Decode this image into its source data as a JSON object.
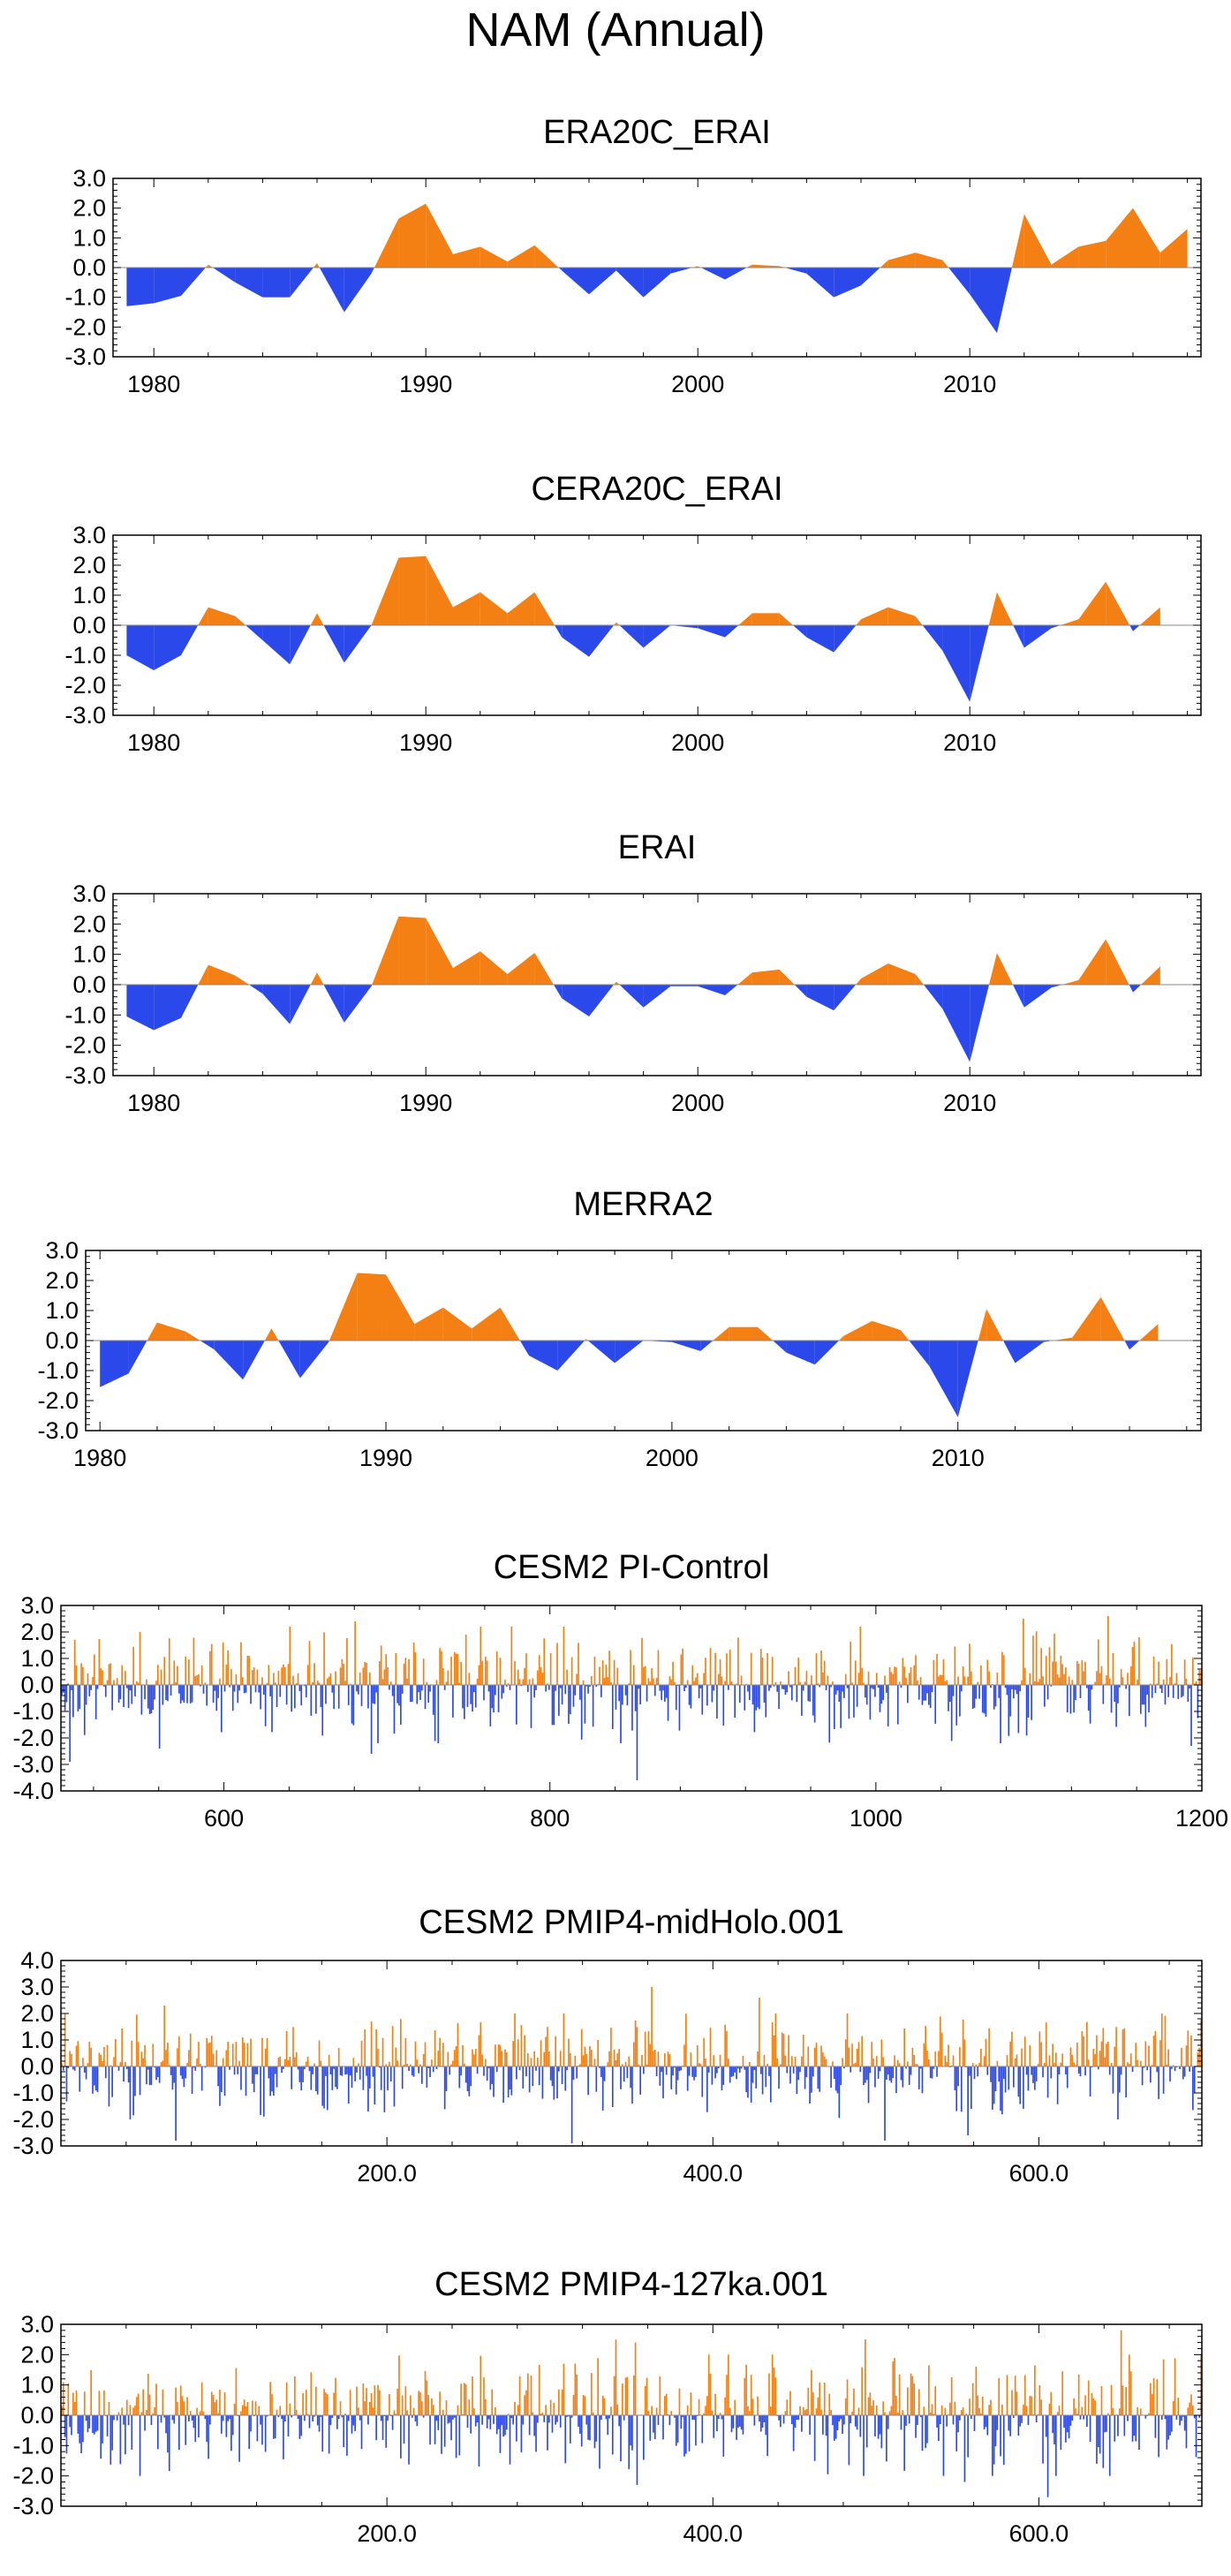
{
  "figure": {
    "title": "NAM (Annual)",
    "colors": {
      "positive": "#f47f12",
      "negative": "#2b48ea",
      "axis": "#000000"
    }
  },
  "chart_data": [
    {
      "type": "area",
      "title": "ERA20C_ERAI",
      "xlabel": "",
      "ylabel": "",
      "xlim": [
        1978.5,
        2018.5
      ],
      "ylim": [
        -3,
        3
      ],
      "yticks": [
        3,
        2,
        1,
        0,
        -1,
        -2,
        -3
      ],
      "yticklabels": [
        "3.0",
        "2.0",
        "1.0",
        "0.0",
        "-1.0",
        "-2.0",
        "-3.0"
      ],
      "xticks": [
        1980,
        1990,
        2000,
        2010
      ],
      "xticklabels": [
        "1980",
        "1990",
        "2000",
        "2010"
      ],
      "x_start": 1979,
      "values": [
        -1.3,
        -1.2,
        -0.95,
        0.1,
        -0.5,
        -1.0,
        -1.0,
        0.15,
        -1.5,
        -0.2,
        1.65,
        2.15,
        0.45,
        0.7,
        0.2,
        0.75,
        -0.1,
        -0.9,
        -0.1,
        -1.0,
        -0.2,
        0.05,
        -0.4,
        0.1,
        0.05,
        -0.2,
        -1.0,
        -0.6,
        0.25,
        0.5,
        0.25,
        -0.9,
        -2.2,
        1.8,
        0.1,
        0.7,
        0.9,
        2.0,
        0.5,
        1.3
      ]
    },
    {
      "type": "area",
      "title": "CERA20C_ERAI",
      "xlabel": "",
      "ylabel": "",
      "xlim": [
        1978.5,
        2018.5
      ],
      "ylim": [
        -3,
        3
      ],
      "yticks": [
        3,
        2,
        1,
        0,
        -1,
        -2,
        -3
      ],
      "yticklabels": [
        "3.0",
        "2.0",
        "1.0",
        "0.0",
        "-1.0",
        "-2.0",
        "-3.0"
      ],
      "xticks": [
        1980,
        1990,
        2000,
        2010
      ],
      "xticklabels": [
        "1980",
        "1990",
        "2000",
        "2010"
      ],
      "x_start": 1979,
      "values": [
        -1.0,
        -1.5,
        -1.0,
        0.6,
        0.3,
        -0.5,
        -1.3,
        0.4,
        -1.25,
        0.0,
        2.25,
        2.3,
        0.6,
        1.1,
        0.4,
        1.1,
        -0.4,
        -1.05,
        0.1,
        -0.75,
        0.0,
        -0.1,
        -0.4,
        0.4,
        0.4,
        -0.4,
        -0.9,
        0.2,
        0.6,
        0.3,
        -0.85,
        -2.55,
        1.1,
        -0.75,
        -0.1,
        0.2,
        1.45,
        -0.2,
        0.6
      ]
    },
    {
      "type": "area",
      "title": "ERAI",
      "xlabel": "",
      "ylabel": "",
      "xlim": [
        1978.5,
        2018.5
      ],
      "ylim": [
        -3,
        3
      ],
      "yticks": [
        3,
        2,
        1,
        0,
        -1,
        -2,
        -3
      ],
      "yticklabels": [
        "3.0",
        "2.0",
        "1.0",
        "0.0",
        "-1.0",
        "-2.0",
        "-3.0"
      ],
      "xticks": [
        1980,
        1990,
        2000,
        2010
      ],
      "xticklabels": [
        "1980",
        "1990",
        "2000",
        "2010"
      ],
      "x_start": 1979,
      "values": [
        -1.05,
        -1.5,
        -1.1,
        0.65,
        0.3,
        -0.3,
        -1.3,
        0.4,
        -1.25,
        -0.05,
        2.25,
        2.2,
        0.55,
        1.1,
        0.35,
        1.05,
        -0.45,
        -1.05,
        0.1,
        -0.75,
        -0.05,
        -0.05,
        -0.35,
        0.4,
        0.5,
        -0.4,
        -0.85,
        0.2,
        0.7,
        0.35,
        -0.8,
        -2.55,
        1.05,
        -0.75,
        -0.1,
        0.15,
        1.5,
        -0.25,
        0.6
      ]
    },
    {
      "type": "area",
      "title": "MERRA2",
      "xlabel": "",
      "ylabel": "",
      "xlim": [
        1979.5,
        2018.5
      ],
      "ylim": [
        -3,
        3
      ],
      "yticks": [
        3,
        2,
        1,
        0,
        -1,
        -2,
        -3
      ],
      "yticklabels": [
        "3.0",
        "2.0",
        "1.0",
        "0.0",
        "-1.0",
        "-2.0",
        "-3.0"
      ],
      "xticks": [
        1980,
        1990,
        2000,
        2010
      ],
      "xticklabels": [
        "1980",
        "1990",
        "2000",
        "2010"
      ],
      "x_start": 1980,
      "values": [
        -1.55,
        -1.1,
        0.6,
        0.3,
        -0.3,
        -1.3,
        0.4,
        -1.25,
        -0.05,
        2.25,
        2.2,
        0.55,
        1.1,
        0.4,
        1.1,
        -0.5,
        -1.0,
        0.05,
        -0.75,
        0.0,
        -0.05,
        -0.35,
        0.45,
        0.45,
        -0.4,
        -0.8,
        0.15,
        0.65,
        0.35,
        -0.85,
        -2.55,
        1.05,
        -0.75,
        -0.05,
        0.1,
        1.45,
        -0.3,
        0.55
      ]
    },
    {
      "type": "bar",
      "title": "CESM2 PI-Control",
      "xlabel": "",
      "ylabel": "",
      "xlim": [
        500,
        1200
      ],
      "ylim": [
        -4,
        3
      ],
      "yticks": [
        3,
        2,
        1,
        0,
        -1,
        -2,
        -3,
        -4
      ],
      "yticklabels": [
        "3.0",
        "2.0",
        "1.0",
        "0.0",
        "-1.0",
        "-2.0",
        "-3.0",
        "-4.0"
      ],
      "xticks": [
        600,
        800,
        1000,
        1200
      ],
      "xticklabels": [
        "600",
        "800",
        "1000",
        "1200"
      ],
      "x_start": 500,
      "n": 700,
      "amplitude": 2.2,
      "peaks": [
        {
          "x": 505,
          "y": -2.9
        },
        {
          "x": 548,
          "y": 2.0
        },
        {
          "x": 560,
          "y": -2.4
        },
        {
          "x": 680,
          "y": 2.4
        },
        {
          "x": 690,
          "y": -2.6
        },
        {
          "x": 757,
          "y": 2.2
        },
        {
          "x": 853,
          "y": -3.6
        },
        {
          "x": 990,
          "y": 2.2
        },
        {
          "x": 1090,
          "y": 2.5
        },
        {
          "x": 1142,
          "y": 2.6
        },
        {
          "x": 1193,
          "y": -2.3
        }
      ]
    },
    {
      "type": "bar",
      "title": "CESM2 PMIP4-midHolo.001",
      "xlabel": "",
      "ylabel": "",
      "xlim": [
        0,
        700
      ],
      "ylim": [
        -3,
        4
      ],
      "yticks": [
        4,
        3,
        2,
        1,
        0,
        -1,
        -2,
        -3
      ],
      "yticklabels": [
        "4.0",
        "3.0",
        "2.0",
        "1.0",
        "0.0",
        "-1.0",
        "-2.0",
        "-3.0"
      ],
      "xticks": [
        200,
        400,
        600
      ],
      "xticklabels": [
        "200.0",
        "400.0",
        "600.0"
      ],
      "x_start": 0,
      "n": 700,
      "amplitude": 2.0,
      "peaks": [
        {
          "x": 63,
          "y": 2.3
        },
        {
          "x": 70,
          "y": -2.8
        },
        {
          "x": 313,
          "y": -2.9
        },
        {
          "x": 362,
          "y": 3.0
        },
        {
          "x": 428,
          "y": 2.6
        },
        {
          "x": 505,
          "y": -2.8
        },
        {
          "x": 556,
          "y": -2.6
        }
      ]
    },
    {
      "type": "bar",
      "title": "CESM2 PMIP4-127ka.001",
      "xlabel": "",
      "ylabel": "",
      "xlim": [
        0,
        700
      ],
      "ylim": [
        -3,
        3
      ],
      "yticks": [
        3,
        2,
        1,
        0,
        -1,
        -2,
        -3
      ],
      "yticklabels": [
        "3.0",
        "2.0",
        "1.0",
        "0.0",
        "-1.0",
        "-2.0",
        "-3.0"
      ],
      "xticks": [
        200,
        400,
        600
      ],
      "xticklabels": [
        "200.0",
        "400.0",
        "600.0"
      ],
      "x_start": 0,
      "n": 700,
      "amplitude": 2.0,
      "peaks": [
        {
          "x": 340,
          "y": 2.5
        },
        {
          "x": 353,
          "y": -2.3
        },
        {
          "x": 352,
          "y": 2.4
        },
        {
          "x": 493,
          "y": 2.5
        },
        {
          "x": 554,
          "y": -2.2
        },
        {
          "x": 605,
          "y": -2.7
        },
        {
          "x": 650,
          "y": 2.8
        }
      ]
    }
  ]
}
